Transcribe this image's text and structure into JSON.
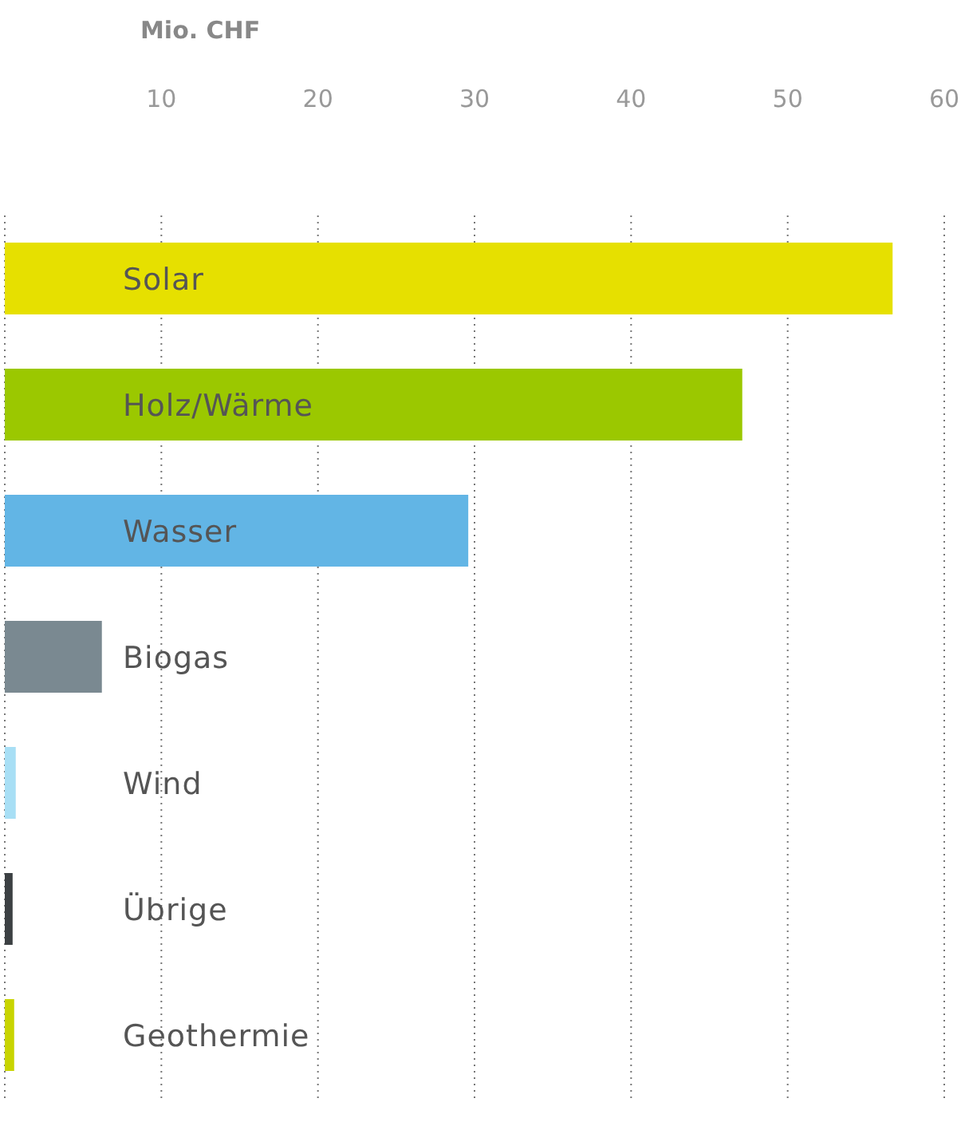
{
  "chart_data": {
    "type": "bar",
    "orientation": "horizontal",
    "xlabel": "Mio. CHF",
    "categories": [
      "Solar",
      "Holz/Wärme",
      "Wasser",
      "Biogas",
      "Wind",
      "Übrige",
      "Geothermie"
    ],
    "values": [
      56.7,
      47.1,
      29.6,
      6.2,
      0.7,
      0.5,
      0.6
    ],
    "colors": [
      "#e6e000",
      "#9bc800",
      "#62b5e5",
      "#7a8991",
      "#a8dff5",
      "#3c4043",
      "#c8d400"
    ],
    "xlim": [
      0,
      60
    ],
    "xticks": [
      10,
      20,
      30,
      40,
      50,
      60
    ],
    "grid": "x"
  }
}
